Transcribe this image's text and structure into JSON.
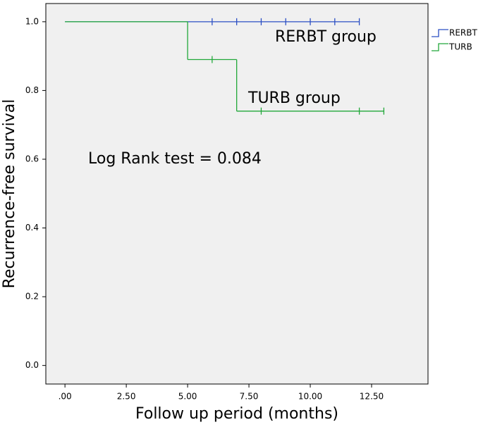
{
  "chart_data": {
    "type": "km",
    "x_label": "Follow up period (months)",
    "y_label": "Recurrence-free survival",
    "annotations": [
      "RERBT group",
      "TURB group",
      "Log Rank test = 0.084"
    ],
    "xlim": [
      -0.78,
      14.8
    ],
    "ylim": [
      -0.054,
      1.053
    ],
    "xticks": [
      {
        "value": 0,
        "label": ".00"
      },
      {
        "value": 2.5,
        "label": "2.50"
      },
      {
        "value": 5,
        "label": "5.00"
      },
      {
        "value": 7.5,
        "label": "7.50"
      },
      {
        "value": 10,
        "label": "10.00"
      },
      {
        "value": 12.5,
        "label": "12.50"
      }
    ],
    "yticks": [
      {
        "value": 0,
        "label": "0.0"
      },
      0.2,
      0.4,
      0.6,
      0.8,
      {
        "value": 1,
        "label": "1.0"
      }
    ],
    "legend": "right",
    "series": [
      {
        "name": "RERBT",
        "color": "#2b4fc4",
        "x": [
          0,
          6,
          7,
          8,
          9,
          10,
          11,
          12
        ],
        "values": [
          1,
          1,
          1,
          1,
          1,
          1,
          1,
          1
        ],
        "censored": [
          false,
          true,
          true,
          true,
          true,
          true,
          true,
          true
        ]
      },
      {
        "name": "TURB",
        "color": "#22a83a",
        "x": [
          0,
          5,
          6,
          7,
          8,
          12,
          13
        ],
        "values": [
          1,
          0.89,
          0.89,
          0.74,
          0.74,
          0.74,
          0.74
        ],
        "censored": [
          false,
          false,
          true,
          false,
          true,
          true,
          true
        ]
      }
    ]
  }
}
